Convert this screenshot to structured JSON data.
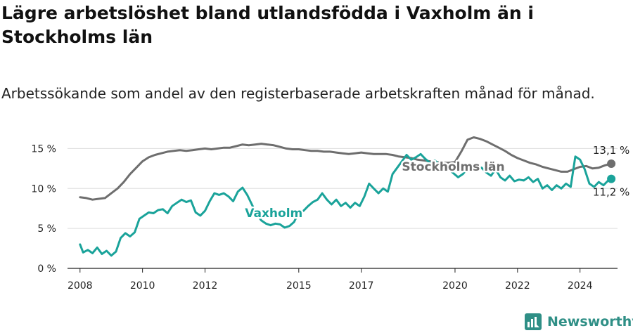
{
  "title": "Lägre arbetslöshet bland utlandsfödda i Vaxholm än i Stockholms län",
  "subtitle": "Arbetssökande som andel av den registerbaserade arbetskraften månad för månad.",
  "brand": {
    "name": "Newsworthy",
    "icon": "newsworthy-logo-icon",
    "color": "#2f8f86"
  },
  "chart_data": {
    "type": "line",
    "xlim": [
      2007.6,
      2025.2
    ],
    "ylim": [
      0,
      16
    ],
    "x_ticks": [
      2008,
      2010,
      2012,
      2015,
      2017,
      2020,
      2022,
      2024
    ],
    "y_ticks": [
      {
        "value": 0,
        "label": "0 %"
      },
      {
        "value": 5,
        "label": "5 %"
      },
      {
        "value": 10,
        "label": "10 %"
      },
      {
        "value": 15,
        "label": "15 %"
      }
    ],
    "grid": true,
    "series": [
      {
        "name": "Stockholms län",
        "color": "#6e6e6e",
        "end_label": "13,1 %",
        "points": [
          [
            2008.0,
            8.9
          ],
          [
            2008.2,
            8.8
          ],
          [
            2008.4,
            8.6
          ],
          [
            2008.6,
            8.7
          ],
          [
            2008.8,
            8.8
          ],
          [
            2009.0,
            9.4
          ],
          [
            2009.2,
            10.0
          ],
          [
            2009.4,
            10.8
          ],
          [
            2009.6,
            11.8
          ],
          [
            2009.8,
            12.6
          ],
          [
            2010.0,
            13.4
          ],
          [
            2010.2,
            13.9
          ],
          [
            2010.4,
            14.2
          ],
          [
            2010.6,
            14.4
          ],
          [
            2010.8,
            14.6
          ],
          [
            2011.0,
            14.7
          ],
          [
            2011.2,
            14.8
          ],
          [
            2011.4,
            14.7
          ],
          [
            2011.6,
            14.8
          ],
          [
            2011.8,
            14.9
          ],
          [
            2012.0,
            15.0
          ],
          [
            2012.2,
            14.9
          ],
          [
            2012.4,
            15.0
          ],
          [
            2012.6,
            15.1
          ],
          [
            2012.8,
            15.1
          ],
          [
            2013.0,
            15.3
          ],
          [
            2013.2,
            15.5
          ],
          [
            2013.4,
            15.4
          ],
          [
            2013.6,
            15.5
          ],
          [
            2013.8,
            15.6
          ],
          [
            2014.0,
            15.5
          ],
          [
            2014.2,
            15.4
          ],
          [
            2014.4,
            15.2
          ],
          [
            2014.6,
            15.0
          ],
          [
            2014.8,
            14.9
          ],
          [
            2015.0,
            14.9
          ],
          [
            2015.2,
            14.8
          ],
          [
            2015.4,
            14.7
          ],
          [
            2015.6,
            14.7
          ],
          [
            2015.8,
            14.6
          ],
          [
            2016.0,
            14.6
          ],
          [
            2016.2,
            14.5
          ],
          [
            2016.4,
            14.4
          ],
          [
            2016.6,
            14.3
          ],
          [
            2016.8,
            14.4
          ],
          [
            2017.0,
            14.5
          ],
          [
            2017.2,
            14.4
          ],
          [
            2017.4,
            14.3
          ],
          [
            2017.6,
            14.3
          ],
          [
            2017.8,
            14.3
          ],
          [
            2018.0,
            14.2
          ],
          [
            2018.2,
            14.0
          ],
          [
            2018.4,
            13.9
          ],
          [
            2018.6,
            13.8
          ],
          [
            2018.8,
            13.6
          ],
          [
            2019.0,
            13.5
          ],
          [
            2019.2,
            13.4
          ],
          [
            2019.4,
            13.3
          ],
          [
            2019.6,
            13.2
          ],
          [
            2019.8,
            13.2
          ],
          [
            2020.0,
            13.3
          ],
          [
            2020.2,
            14.6
          ],
          [
            2020.4,
            16.1
          ],
          [
            2020.6,
            16.4
          ],
          [
            2020.8,
            16.2
          ],
          [
            2021.0,
            15.9
          ],
          [
            2021.2,
            15.5
          ],
          [
            2021.4,
            15.1
          ],
          [
            2021.6,
            14.7
          ],
          [
            2021.8,
            14.2
          ],
          [
            2022.0,
            13.8
          ],
          [
            2022.2,
            13.5
          ],
          [
            2022.4,
            13.2
          ],
          [
            2022.6,
            13.0
          ],
          [
            2022.8,
            12.7
          ],
          [
            2023.0,
            12.5
          ],
          [
            2023.2,
            12.3
          ],
          [
            2023.4,
            12.1
          ],
          [
            2023.6,
            12.1
          ],
          [
            2023.8,
            12.4
          ],
          [
            2024.0,
            12.7
          ],
          [
            2024.2,
            12.8
          ],
          [
            2024.4,
            12.5
          ],
          [
            2024.6,
            12.6
          ],
          [
            2024.8,
            12.9
          ],
          [
            2025.0,
            13.1
          ]
        ]
      },
      {
        "name": "Vaxholm",
        "color": "#1aa39a",
        "end_label": "11,2 %",
        "points": [
          [
            2008.0,
            3.0
          ],
          [
            2008.1,
            2.0
          ],
          [
            2008.25,
            2.3
          ],
          [
            2008.4,
            1.9
          ],
          [
            2008.55,
            2.6
          ],
          [
            2008.7,
            1.8
          ],
          [
            2008.85,
            2.2
          ],
          [
            2009.0,
            1.6
          ],
          [
            2009.15,
            2.1
          ],
          [
            2009.3,
            3.8
          ],
          [
            2009.45,
            4.4
          ],
          [
            2009.6,
            4.0
          ],
          [
            2009.75,
            4.5
          ],
          [
            2009.9,
            6.2
          ],
          [
            2010.05,
            6.6
          ],
          [
            2010.2,
            7.0
          ],
          [
            2010.35,
            6.9
          ],
          [
            2010.5,
            7.3
          ],
          [
            2010.65,
            7.4
          ],
          [
            2010.8,
            6.9
          ],
          [
            2010.95,
            7.8
          ],
          [
            2011.1,
            8.2
          ],
          [
            2011.25,
            8.6
          ],
          [
            2011.4,
            8.3
          ],
          [
            2011.55,
            8.5
          ],
          [
            2011.7,
            7.0
          ],
          [
            2011.85,
            6.6
          ],
          [
            2012.0,
            7.2
          ],
          [
            2012.15,
            8.4
          ],
          [
            2012.3,
            9.4
          ],
          [
            2012.45,
            9.2
          ],
          [
            2012.6,
            9.4
          ],
          [
            2012.75,
            9.0
          ],
          [
            2012.9,
            8.4
          ],
          [
            2013.05,
            9.6
          ],
          [
            2013.2,
            10.1
          ],
          [
            2013.35,
            9.2
          ],
          [
            2013.5,
            8.0
          ],
          [
            2013.65,
            6.8
          ],
          [
            2013.8,
            6.0
          ],
          [
            2013.95,
            5.6
          ],
          [
            2014.1,
            5.4
          ],
          [
            2014.25,
            5.6
          ],
          [
            2014.4,
            5.5
          ],
          [
            2014.55,
            5.1
          ],
          [
            2014.7,
            5.3
          ],
          [
            2014.85,
            5.8
          ],
          [
            2015.0,
            7.0
          ],
          [
            2015.15,
            7.2
          ],
          [
            2015.3,
            7.8
          ],
          [
            2015.45,
            8.3
          ],
          [
            2015.6,
            8.6
          ],
          [
            2015.75,
            9.4
          ],
          [
            2015.9,
            8.6
          ],
          [
            2016.05,
            8.0
          ],
          [
            2016.2,
            8.6
          ],
          [
            2016.35,
            7.8
          ],
          [
            2016.5,
            8.2
          ],
          [
            2016.65,
            7.6
          ],
          [
            2016.8,
            8.2
          ],
          [
            2016.95,
            7.8
          ],
          [
            2017.1,
            9.0
          ],
          [
            2017.25,
            10.6
          ],
          [
            2017.4,
            10.0
          ],
          [
            2017.55,
            9.4
          ],
          [
            2017.7,
            10.0
          ],
          [
            2017.85,
            9.6
          ],
          [
            2018.0,
            11.8
          ],
          [
            2018.15,
            12.6
          ],
          [
            2018.3,
            13.4
          ],
          [
            2018.45,
            14.2
          ],
          [
            2018.6,
            13.6
          ],
          [
            2018.75,
            13.9
          ],
          [
            2018.9,
            14.3
          ],
          [
            2019.05,
            13.7
          ],
          [
            2019.2,
            13.2
          ],
          [
            2019.35,
            13.5
          ],
          [
            2019.5,
            13.0
          ],
          [
            2019.65,
            12.6
          ],
          [
            2019.8,
            12.4
          ],
          [
            2019.95,
            11.9
          ],
          [
            2020.1,
            11.4
          ],
          [
            2020.25,
            11.8
          ],
          [
            2020.4,
            12.5
          ],
          [
            2020.55,
            13.0
          ],
          [
            2020.7,
            12.2
          ],
          [
            2020.85,
            12.6
          ],
          [
            2021.0,
            12.0
          ],
          [
            2021.15,
            11.6
          ],
          [
            2021.3,
            12.4
          ],
          [
            2021.45,
            11.4
          ],
          [
            2021.6,
            11.0
          ],
          [
            2021.75,
            11.6
          ],
          [
            2021.9,
            10.9
          ],
          [
            2022.05,
            11.1
          ],
          [
            2022.2,
            11.0
          ],
          [
            2022.35,
            11.4
          ],
          [
            2022.5,
            10.8
          ],
          [
            2022.65,
            11.2
          ],
          [
            2022.8,
            10.0
          ],
          [
            2022.95,
            10.4
          ],
          [
            2023.1,
            9.8
          ],
          [
            2023.25,
            10.4
          ],
          [
            2023.4,
            10.0
          ],
          [
            2023.55,
            10.6
          ],
          [
            2023.7,
            10.2
          ],
          [
            2023.85,
            14.0
          ],
          [
            2024.0,
            13.6
          ],
          [
            2024.15,
            12.4
          ],
          [
            2024.3,
            10.6
          ],
          [
            2024.45,
            10.2
          ],
          [
            2024.6,
            10.8
          ],
          [
            2024.75,
            10.4
          ],
          [
            2024.9,
            11.0
          ],
          [
            2025.0,
            11.2
          ]
        ]
      }
    ]
  }
}
